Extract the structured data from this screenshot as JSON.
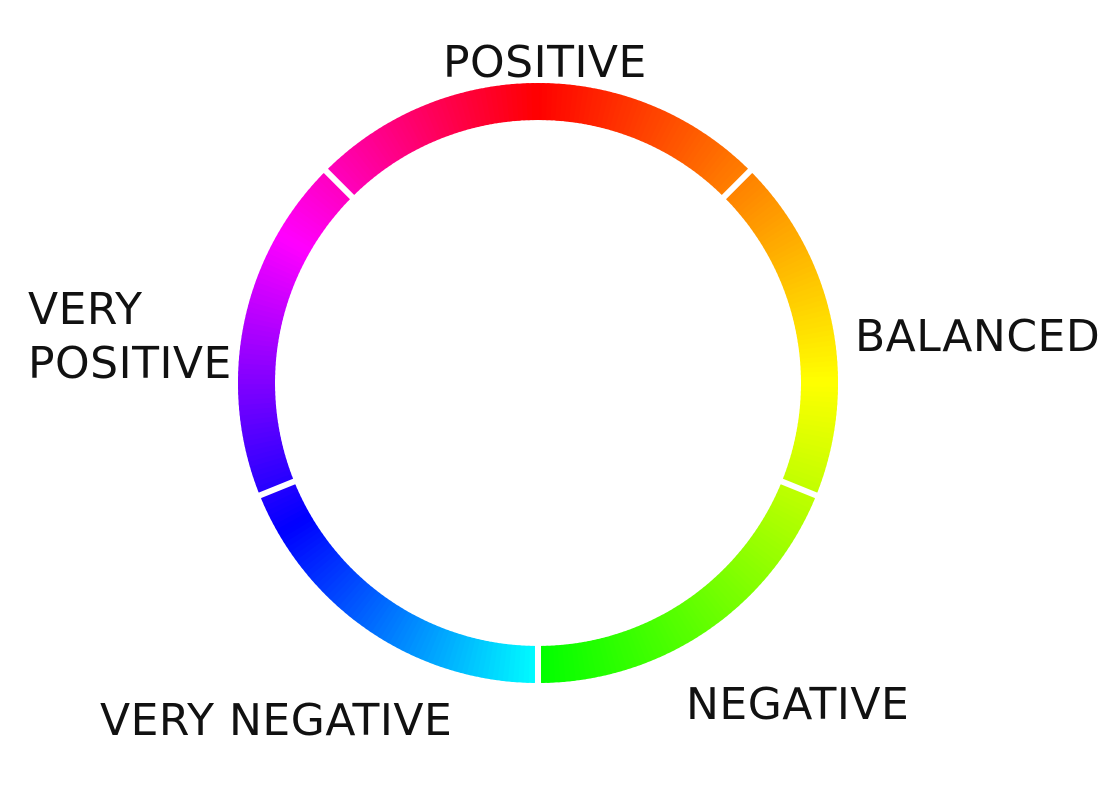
{
  "diagram": {
    "labels": {
      "positive": "POSITIVE",
      "balanced": "BALANCED",
      "negative": "NEGATIVE",
      "very_negative": "VERY NEGATIVE",
      "very_positive_line1": "VERY",
      "very_positive_line2": "POSITIVE"
    },
    "segments": [
      {
        "start_deg": -45,
        "end_deg": 45,
        "label_key": "positive"
      },
      {
        "start_deg": 45,
        "end_deg": 112,
        "label_key": "balanced"
      },
      {
        "start_deg": 112,
        "end_deg": 180,
        "label_key": "negative"
      },
      {
        "start_deg": 180,
        "end_deg": 248,
        "label_key": "very_negative"
      },
      {
        "start_deg": 248,
        "end_deg": 315,
        "label_key": "very_positive"
      }
    ],
    "background_color": "#ffffff",
    "divider_color": "#ffffff",
    "text_color": "#111111"
  }
}
